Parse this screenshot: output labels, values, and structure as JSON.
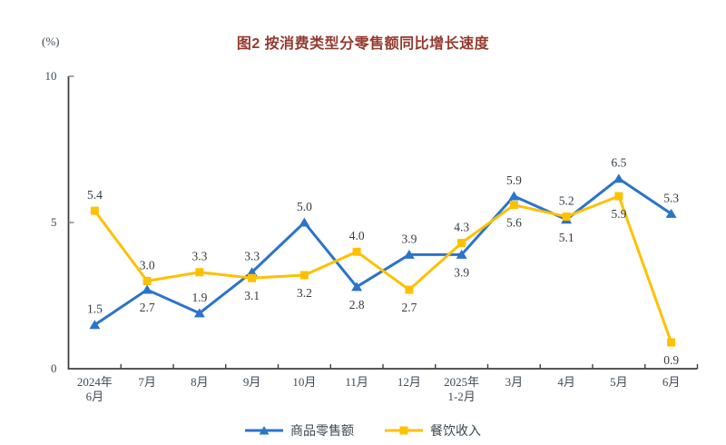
{
  "page": {
    "title": "图2 按消费类型分零售额同比增长速度",
    "unit_label": "(%)"
  },
  "colors": {
    "title": "#943A2F",
    "axis": "#404040",
    "y_tick": "#808080",
    "axis_text": "#3E4A56",
    "data_label": "#333B41",
    "series_blue": "#2A74CB",
    "series_gold": "#FFC000",
    "background": "#FFFFFF"
  },
  "chart_data": {
    "type": "line",
    "title": "图2 按消费类型分零售额同比增长速度",
    "unit": "(%)",
    "categories": [
      [
        "2024年",
        "6月"
      ],
      [
        "7月"
      ],
      [
        "8月"
      ],
      [
        "9月"
      ],
      [
        "10月"
      ],
      [
        "11月"
      ],
      [
        "12月"
      ],
      [
        "2025年",
        "1-2月"
      ],
      [
        "3月"
      ],
      [
        "4月"
      ],
      [
        "5月"
      ],
      [
        "6月"
      ]
    ],
    "ylim": [
      0,
      10
    ],
    "yticks": [
      0,
      5,
      10
    ],
    "grid": false,
    "legend_position": "bottom",
    "series": [
      {
        "key": "goods-retail",
        "name": "商品零售额",
        "color": "#2A74CB",
        "marker": "triangle",
        "values": [
          1.5,
          2.7,
          1.9,
          3.3,
          5.0,
          2.8,
          3.9,
          3.9,
          5.9,
          5.1,
          6.5,
          5.3
        ],
        "label_pos": [
          "above",
          "below",
          "above",
          "above",
          "above",
          "below",
          "above",
          "below",
          "above",
          "below",
          "above",
          "above"
        ]
      },
      {
        "key": "catering-revenue",
        "name": "餐饮收入",
        "color": "#FFC000",
        "marker": "square",
        "values": [
          5.4,
          3.0,
          3.3,
          3.1,
          3.2,
          4.0,
          2.7,
          4.3,
          5.6,
          5.2,
          5.9,
          0.9
        ],
        "label_pos": [
          "above",
          "above",
          "above",
          "below",
          "below",
          "above",
          "below",
          "above",
          "below",
          "above",
          "below",
          "below"
        ]
      }
    ]
  }
}
